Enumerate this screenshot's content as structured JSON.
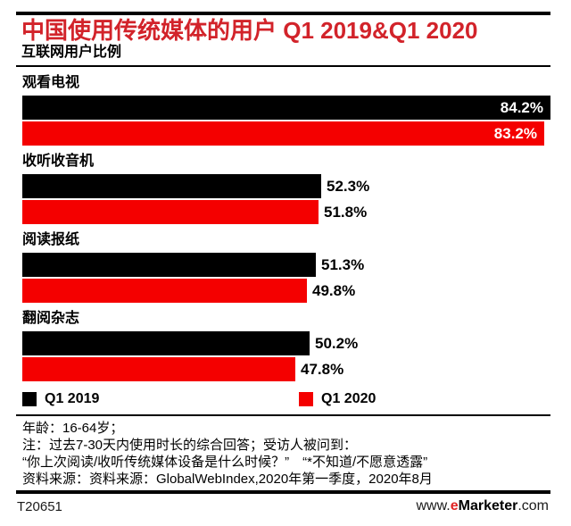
{
  "header": {
    "title": "中国使用传统媒体的用户 Q1 2019&Q1 2020",
    "subtitle": "互联网用户比例"
  },
  "chart_data": {
    "type": "bar",
    "orientation": "horizontal",
    "title": "中国使用传统媒体的用户 Q1 2019&Q1 2020",
    "subtitle": "互联网用户比例",
    "categories": [
      "观看电视",
      "收听收音机",
      "阅读报纸",
      "翻阅杂志"
    ],
    "series": [
      {
        "name": "Q1 2019",
        "color": "#000000",
        "values": [
          84.2,
          52.3,
          51.3,
          50.2
        ]
      },
      {
        "name": "Q1 2020",
        "color": "#f40000",
        "values": [
          83.2,
          51.8,
          49.8,
          47.8
        ]
      }
    ],
    "value_labels": [
      [
        "84.2%",
        "52.3%",
        "51.3%",
        "50.2%"
      ],
      [
        "83.2%",
        "51.8%",
        "49.8%",
        "47.8%"
      ]
    ],
    "value_suffix": "%",
    "xlim": [
      0,
      100
    ],
    "grid": false,
    "legend_position": "bottom"
  },
  "footnotes": {
    "lines": [
      "年龄：16-64岁；",
      "注：过去7-30天内使用时长的综合回答；受访人被问到：",
      "“你上次阅读/收听传统媒体设备是什么时候？”　“*不知道/不愿意透露”",
      "资料来源：资料来源：GlobalWebIndex,2020年第一季度，2020年8月"
    ]
  },
  "footer": {
    "chart_id": "T20651",
    "url_prefix": "www.",
    "brand_first_letter": "e",
    "brand_rest": "Marketer",
    "url_suffix": ".com"
  },
  "colors": {
    "title_red": "#d2232a",
    "bar_black": "#000000",
    "bar_red": "#f40000",
    "brand_red": "#e02424"
  }
}
